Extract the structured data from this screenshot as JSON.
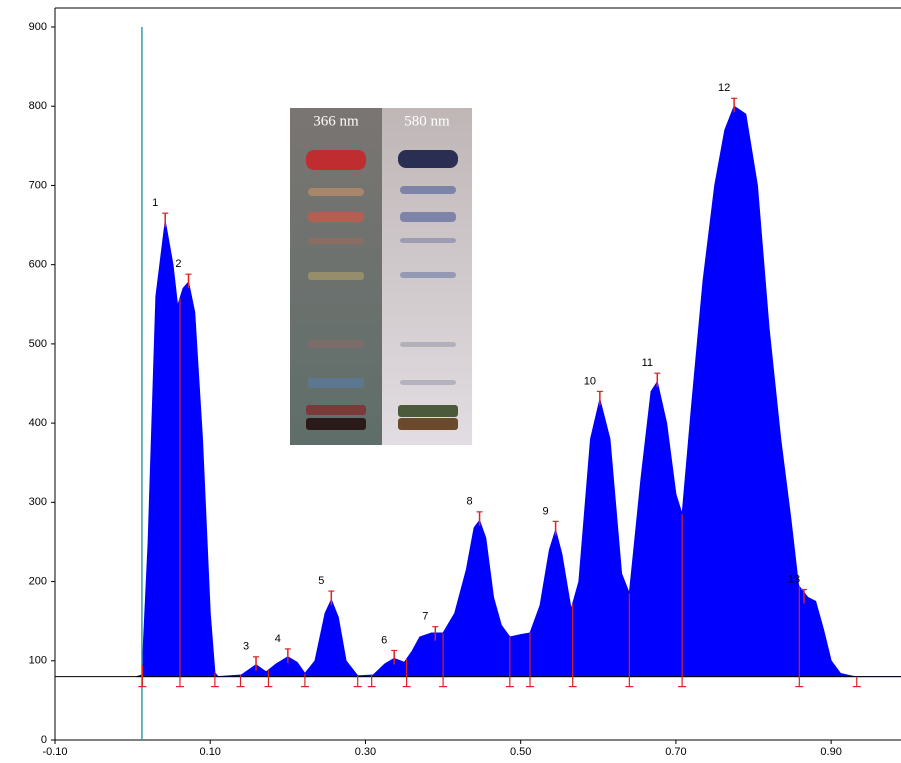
{
  "chart_data": {
    "type": "area",
    "color": "#0000ff",
    "baseline": 80,
    "start_line_x": 0.012,
    "xlim": [
      -0.1,
      0.99
    ],
    "xticks": [
      {
        "value": -0.1,
        "label": "-0.10"
      },
      {
        "value": 0.1,
        "label": "0.10"
      },
      {
        "value": 0.3,
        "label": "0.30"
      },
      {
        "value": 0.5,
        "label": "0.50"
      },
      {
        "value": 0.7,
        "label": "0.70"
      },
      {
        "value": 0.9,
        "label": "0.90"
      }
    ],
    "ylim": [
      0,
      900
    ],
    "yticks": [
      0,
      100,
      200,
      300,
      400,
      500,
      600,
      700,
      800,
      900
    ],
    "x": [
      0.005,
      0.012,
      0.02,
      0.03,
      0.042,
      0.052,
      0.058,
      0.065,
      0.072,
      0.08,
      0.09,
      0.1,
      0.106,
      0.11,
      0.14,
      0.159,
      0.172,
      0.185,
      0.2,
      0.212,
      0.222,
      0.235,
      0.248,
      0.256,
      0.265,
      0.275,
      0.29,
      0.31,
      0.325,
      0.337,
      0.35,
      0.36,
      0.37,
      0.385,
      0.4,
      0.415,
      0.43,
      0.44,
      0.447,
      0.455,
      0.465,
      0.475,
      0.486,
      0.5,
      0.512,
      0.525,
      0.537,
      0.545,
      0.553,
      0.565,
      0.575,
      0.59,
      0.602,
      0.615,
      0.63,
      0.64,
      0.655,
      0.668,
      0.676,
      0.688,
      0.7,
      0.708,
      0.72,
      0.735,
      0.75,
      0.763,
      0.775,
      0.79,
      0.805,
      0.82,
      0.835,
      0.848,
      0.858,
      0.87,
      0.88,
      0.89,
      0.9,
      0.912,
      0.93,
      0.99
    ],
    "values": [
      80,
      82,
      250,
      560,
      655,
      600,
      548,
      570,
      578,
      540,
      380,
      160,
      85,
      80,
      82,
      95,
      86,
      96,
      105,
      98,
      84,
      100,
      160,
      177,
      155,
      100,
      81,
      82,
      96,
      103,
      98,
      112,
      130,
      135,
      135,
      160,
      215,
      268,
      277,
      255,
      180,
      145,
      130,
      133,
      135,
      170,
      240,
      265,
      235,
      165,
      200,
      380,
      430,
      380,
      210,
      185,
      330,
      440,
      452,
      400,
      310,
      285,
      420,
      580,
      700,
      770,
      800,
      790,
      700,
      520,
      380,
      280,
      195,
      180,
      175,
      140,
      100,
      84,
      80,
      80
    ],
    "boundaries": [
      0.0126,
      0.061,
      0.106,
      0.139,
      0.175,
      0.222,
      0.29,
      0.308,
      0.353,
      0.4,
      0.486,
      0.512,
      0.567,
      0.64,
      0.708,
      0.859,
      0.933
    ],
    "peaks": [
      {
        "label": "1",
        "x": 0.042,
        "y": 665
      },
      {
        "label": "2",
        "x": 0.072,
        "y": 588
      },
      {
        "label": "3",
        "x": 0.159,
        "y": 105
      },
      {
        "label": "4",
        "x": 0.2,
        "y": 115
      },
      {
        "label": "5",
        "x": 0.256,
        "y": 188
      },
      {
        "label": "6",
        "x": 0.337,
        "y": 113
      },
      {
        "label": "7",
        "x": 0.39,
        "y": 143
      },
      {
        "label": "8",
        "x": 0.447,
        "y": 288
      },
      {
        "label": "9",
        "x": 0.545,
        "y": 276
      },
      {
        "label": "10",
        "x": 0.602,
        "y": 440
      },
      {
        "label": "11",
        "x": 0.676,
        "y": 463
      },
      {
        "label": "12",
        "x": 0.775,
        "y": 810
      },
      {
        "label": "13",
        "x": 0.865,
        "y": 190
      }
    ],
    "inset": {
      "labels": [
        "366 nm",
        "580 nm"
      ]
    }
  }
}
